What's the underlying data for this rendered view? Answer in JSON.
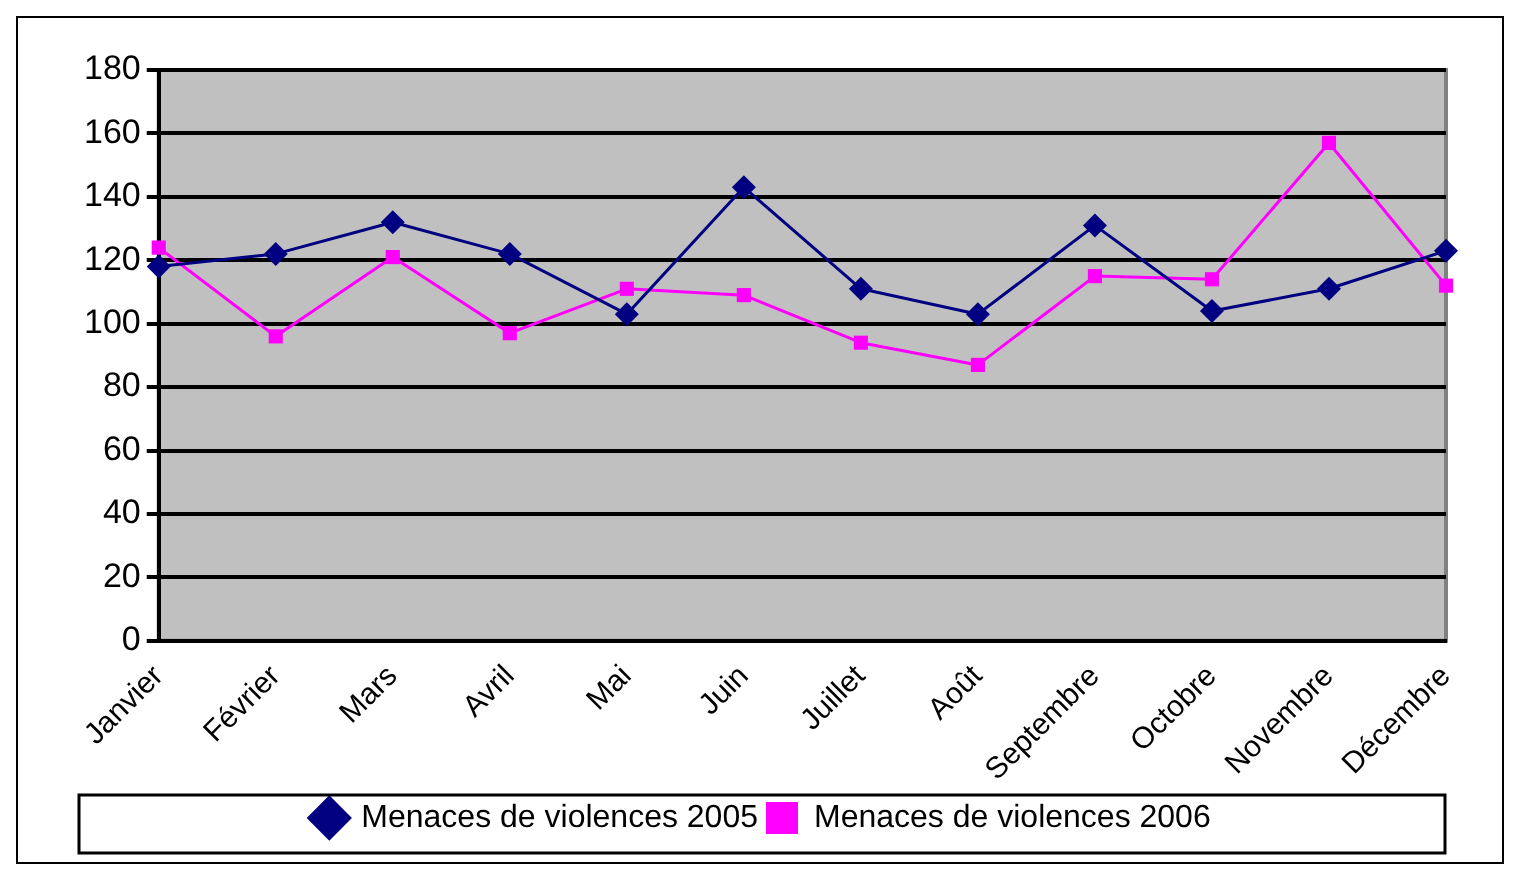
{
  "chart_data": {
    "type": "line",
    "categories": [
      "Janvier",
      "Février",
      "Mars",
      "Avril",
      "Mai",
      "Juin",
      "Juillet",
      "Août",
      "Septembre",
      "Octobre",
      "Novembre",
      "Décembre"
    ],
    "series": [
      {
        "name": "Menaces de violences 2005",
        "color": "#000080",
        "marker": "diamond",
        "values": [
          118,
          122,
          132,
          122,
          103,
          143,
          111,
          103,
          131,
          104,
          111,
          123
        ]
      },
      {
        "name": "Menaces de violences 2006",
        "color": "#ff00ff",
        "marker": "square",
        "values": [
          124,
          96,
          121,
          97,
          111,
          109,
          94,
          87,
          115,
          114,
          157,
          112
        ]
      }
    ],
    "ylim": [
      0,
      180
    ],
    "yticks": [
      0,
      20,
      40,
      60,
      80,
      100,
      120,
      140,
      160,
      180
    ],
    "grid": "y",
    "legend": "bottom",
    "line_style": "solid"
  }
}
